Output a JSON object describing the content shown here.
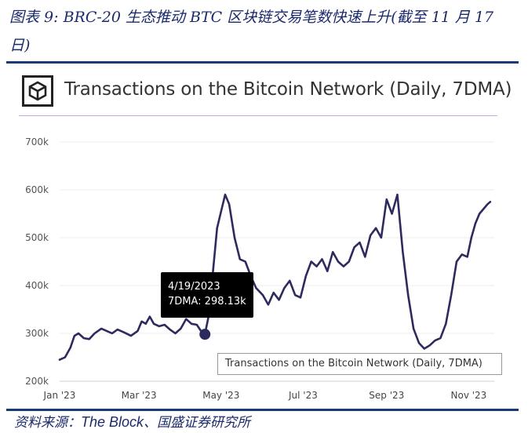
{
  "figure_caption": "图表 9: BRC-20 生态推动 BTC 区块链交易笔数快速上升(截至 11 月 17 日)",
  "source": {
    "prefix": "资料来源：",
    "brand": "The Block",
    "suffix": "、国盛证券研究所"
  },
  "logo_icon": "the-block-cube-icon",
  "colors": {
    "line": "#2d2a5e",
    "accent_rule": "#1b3a78",
    "title_rule": "#c9a6e8"
  },
  "tooltip": {
    "date": "4/19/2023",
    "value_text": "7DMA: 298.13k"
  },
  "chart_data": {
    "type": "line",
    "title": "Transactions on the Bitcoin Network (Daily, 7DMA)",
    "xlabel": "",
    "ylabel": "",
    "ylim": [
      200000,
      700000
    ],
    "yticks": [
      200000,
      300000,
      400000,
      500000,
      600000,
      700000
    ],
    "ytick_labels": [
      "200k",
      "300k",
      "400k",
      "500k",
      "600k",
      "700k"
    ],
    "xlim": [
      "2023-01-01",
      "2023-11-20"
    ],
    "xticks": [
      "2023-01-01",
      "2023-03-01",
      "2023-05-01",
      "2023-07-01",
      "2023-09-01",
      "2023-11-01"
    ],
    "xtick_labels": [
      "Jan '23",
      "Mar '23",
      "May '23",
      "Jul '23",
      "Sep '23",
      "Nov '23"
    ],
    "grid": true,
    "legend": "bottom-right",
    "highlight": {
      "x": "2023-04-19",
      "y": 298130
    },
    "series": [
      {
        "name": "Transactions on the Bitcoin Network (Daily, 7DMA)",
        "x": [
          "2023-01-01",
          "2023-01-05",
          "2023-01-09",
          "2023-01-12",
          "2023-01-15",
          "2023-01-19",
          "2023-01-23",
          "2023-01-27",
          "2023-02-01",
          "2023-02-05",
          "2023-02-09",
          "2023-02-13",
          "2023-02-18",
          "2023-02-23",
          "2023-02-28",
          "2023-03-03",
          "2023-03-06",
          "2023-03-09",
          "2023-03-12",
          "2023-03-16",
          "2023-03-20",
          "2023-03-24",
          "2023-03-28",
          "2023-04-01",
          "2023-04-05",
          "2023-04-09",
          "2023-04-13",
          "2023-04-16",
          "2023-04-19",
          "2023-04-22",
          "2023-04-25",
          "2023-04-28",
          "2023-05-01",
          "2023-05-04",
          "2023-05-07",
          "2023-05-11",
          "2023-05-15",
          "2023-05-19",
          "2023-05-23",
          "2023-05-27",
          "2023-06-01",
          "2023-06-05",
          "2023-06-09",
          "2023-06-13",
          "2023-06-17",
          "2023-06-21",
          "2023-06-25",
          "2023-06-29",
          "2023-07-03",
          "2023-07-07",
          "2023-07-11",
          "2023-07-15",
          "2023-07-19",
          "2023-07-23",
          "2023-07-27",
          "2023-07-31",
          "2023-08-04",
          "2023-08-08",
          "2023-08-12",
          "2023-08-16",
          "2023-08-20",
          "2023-08-24",
          "2023-08-28",
          "2023-09-01",
          "2023-09-05",
          "2023-09-09",
          "2023-09-13",
          "2023-09-17",
          "2023-09-21",
          "2023-09-25",
          "2023-09-29",
          "2023-10-03",
          "2023-10-07",
          "2023-10-11",
          "2023-10-15",
          "2023-10-19",
          "2023-10-23",
          "2023-10-27",
          "2023-10-31",
          "2023-11-03",
          "2023-11-06",
          "2023-11-09",
          "2023-11-12",
          "2023-11-15",
          "2023-11-17"
        ],
        "values": [
          245000,
          250000,
          270000,
          295000,
          300000,
          290000,
          288000,
          300000,
          310000,
          305000,
          300000,
          308000,
          302000,
          295000,
          305000,
          325000,
          320000,
          335000,
          320000,
          315000,
          318000,
          308000,
          300000,
          310000,
          330000,
          320000,
          318000,
          305000,
          298130,
          340000,
          430000,
          520000,
          555000,
          590000,
          570000,
          500000,
          455000,
          450000,
          420000,
          395000,
          380000,
          360000,
          385000,
          370000,
          395000,
          410000,
          380000,
          375000,
          420000,
          450000,
          440000,
          455000,
          430000,
          470000,
          450000,
          440000,
          450000,
          480000,
          490000,
          460000,
          505000,
          520000,
          500000,
          580000,
          550000,
          590000,
          470000,
          380000,
          310000,
          280000,
          268000,
          275000,
          285000,
          290000,
          320000,
          380000,
          450000,
          465000,
          460000,
          500000,
          530000,
          550000,
          560000,
          570000,
          575000
        ]
      }
    ]
  }
}
